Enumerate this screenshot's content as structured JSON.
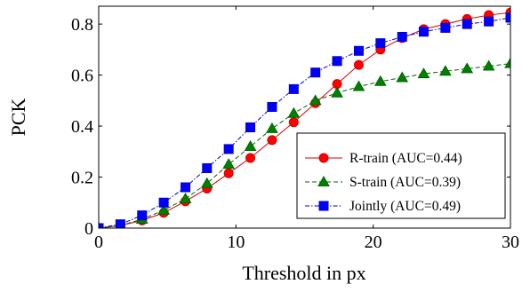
{
  "chart_data": {
    "type": "line",
    "title": "",
    "xlabel": "Threshold in px",
    "ylabel": "PCK",
    "xlim": [
      0,
      30
    ],
    "ylim": [
      0,
      0.87
    ],
    "xticks": [
      0,
      10,
      20,
      30
    ],
    "yticks": [
      0,
      0.2,
      0.4,
      0.6,
      0.8
    ],
    "xtick_labels": [
      "0",
      "10",
      "20",
      "30"
    ],
    "ytick_labels": [
      "0",
      "0.2",
      "0.4",
      "0.6",
      "0.8"
    ],
    "grid": false,
    "legend_position": "bottom-right",
    "x": [
      0,
      1.58,
      3.16,
      4.74,
      6.32,
      7.89,
      9.47,
      11.05,
      12.63,
      14.21,
      15.79,
      17.37,
      18.95,
      20.53,
      22.11,
      23.68,
      25.26,
      26.84,
      28.42,
      30
    ],
    "series": [
      {
        "name": "R-train (AUC=0.44)",
        "color": "#d40000",
        "fill": "#ff0000",
        "marker": "circle",
        "line_style": "solid",
        "values": [
          0.0,
          0.01,
          0.03,
          0.06,
          0.105,
          0.155,
          0.215,
          0.275,
          0.345,
          0.415,
          0.49,
          0.565,
          0.64,
          0.7,
          0.745,
          0.78,
          0.8,
          0.82,
          0.835,
          0.845
        ]
      },
      {
        "name": "S-train (AUC=0.39)",
        "color": "#006400",
        "fill": "#008000",
        "marker": "triangle",
        "line_style": "dashed",
        "values": [
          0.0,
          0.01,
          0.035,
          0.07,
          0.115,
          0.175,
          0.25,
          0.32,
          0.39,
          0.45,
          0.5,
          0.53,
          0.555,
          0.575,
          0.59,
          0.605,
          0.615,
          0.625,
          0.635,
          0.645
        ]
      },
      {
        "name": "Jointly (AUC=0.49)",
        "color": "#0000cc",
        "fill": "#0000ff",
        "marker": "square",
        "line_style": "dashdot",
        "values": [
          0.0,
          0.015,
          0.05,
          0.1,
          0.16,
          0.235,
          0.31,
          0.395,
          0.475,
          0.545,
          0.61,
          0.655,
          0.695,
          0.725,
          0.75,
          0.77,
          0.785,
          0.8,
          0.81,
          0.825
        ]
      }
    ]
  }
}
